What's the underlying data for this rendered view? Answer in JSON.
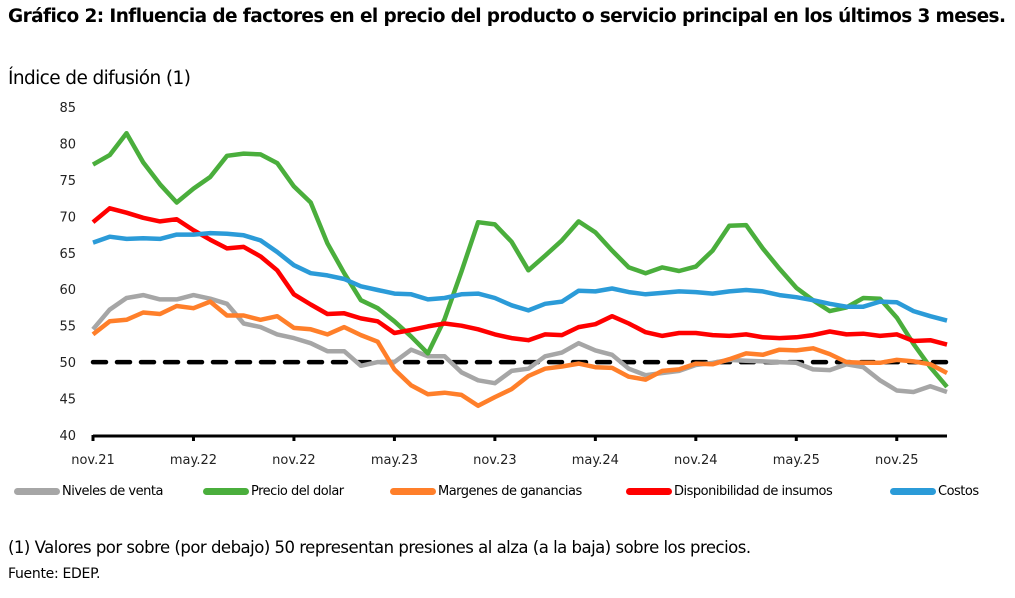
{
  "header": {
    "title": "Gráfico 2: Influencia de factores en el precio del producto o servicio principal en los últimos 3 meses.",
    "subtitle": "Índice de difusión (1)"
  },
  "footer": {
    "note": "(1) Valores por sobre (por debajo) 50 representan presiones al alza (a la baja) sobre los precios.",
    "source": "Fuente: EDEP."
  },
  "chart_data": {
    "type": "line",
    "title": "Gráfico 2: Influencia de factores en el precio del producto o servicio principal en los últimos 3 meses.",
    "ylabel": "Índice de difusión (1)",
    "xlabel": "",
    "ylim": [
      40,
      85
    ],
    "yticks": [
      40,
      45,
      50,
      55,
      60,
      65,
      70,
      75,
      80,
      85
    ],
    "x_start": "nov.21",
    "x_end": "feb.26",
    "x_frequency": "monthly",
    "xtick_labels": [
      "nov.21",
      "may.22",
      "nov.22",
      "may.23",
      "nov.23",
      "may.24",
      "nov.24",
      "may.25",
      "nov.25"
    ],
    "xtick_every": 6,
    "grid": false,
    "legend_position": "bottom",
    "reference_line": {
      "value": 50,
      "style": "dashed",
      "color": "#000000"
    },
    "series": [
      {
        "name": "Niveles de venta",
        "color": "#a6a6a6",
        "values": [
          54.5,
          57.2,
          58.8,
          59.2,
          58.6,
          58.6,
          59.2,
          58.7,
          58.0,
          55.3,
          54.8,
          53.8,
          53.3,
          52.6,
          51.5,
          51.5,
          49.5,
          50.0,
          50.0,
          51.7,
          50.8,
          50.8,
          48.6,
          47.5,
          47.1,
          48.8,
          49.1,
          50.8,
          51.3,
          52.6,
          51.6,
          51.0,
          49.1,
          48.2,
          48.5,
          48.8,
          49.6,
          49.9,
          50.3,
          50.2,
          50.1,
          50.0,
          49.9,
          49.0,
          48.9,
          49.7,
          49.3,
          47.5,
          46.1,
          45.9,
          46.7,
          45.9
        ]
      },
      {
        "name": "Precio del dolar",
        "color": "#4aae3c",
        "values": [
          77.1,
          78.4,
          81.4,
          77.4,
          74.4,
          71.9,
          73.8,
          75.4,
          78.3,
          78.6,
          78.5,
          77.3,
          74.1,
          71.9,
          66.3,
          62.2,
          58.5,
          57.4,
          55.6,
          53.5,
          51.2,
          55.9,
          62.4,
          69.2,
          68.9,
          66.5,
          62.6,
          64.6,
          66.7,
          69.3,
          67.8,
          65.3,
          63.0,
          62.2,
          63.0,
          62.5,
          63.1,
          65.3,
          68.7,
          68.8,
          65.6,
          62.8,
          60.2,
          58.5,
          57.0,
          57.5,
          58.8,
          58.7,
          56.1,
          52.5,
          49.3,
          46.6
        ]
      },
      {
        "name": "Margenes de ganancias",
        "color": "#ff7f2a",
        "values": [
          53.8,
          55.6,
          55.8,
          56.8,
          56.6,
          57.7,
          57.4,
          58.3,
          56.4,
          56.4,
          55.8,
          56.3,
          54.7,
          54.5,
          53.8,
          54.8,
          53.7,
          52.8,
          49.0,
          46.8,
          45.6,
          45.8,
          45.5,
          44.0,
          45.2,
          46.3,
          48.1,
          49.1,
          49.4,
          49.8,
          49.3,
          49.2,
          48.0,
          47.6,
          48.8,
          49.0,
          49.8,
          49.7,
          50.4,
          51.2,
          51.0,
          51.7,
          51.6,
          51.9,
          51.1,
          50.0,
          49.9,
          49.9,
          50.3,
          50.1,
          49.7,
          48.5
        ]
      },
      {
        "name": "Disponibilidad de insumos",
        "color": "#ff0000",
        "values": [
          69.2,
          71.1,
          70.5,
          69.8,
          69.3,
          69.6,
          68.1,
          66.8,
          65.6,
          65.8,
          64.5,
          62.6,
          59.3,
          57.9,
          56.6,
          56.7,
          56.0,
          55.6,
          54.0,
          54.4,
          54.9,
          55.3,
          55.0,
          54.5,
          53.8,
          53.3,
          53.0,
          53.8,
          53.7,
          54.8,
          55.2,
          56.3,
          55.3,
          54.1,
          53.6,
          54.0,
          54.0,
          53.7,
          53.6,
          53.8,
          53.4,
          53.3,
          53.4,
          53.7,
          54.2,
          53.8,
          53.9,
          53.6,
          53.8,
          52.9,
          53.0,
          52.4
        ]
      },
      {
        "name": "Costos",
        "color": "#2b9bd8",
        "values": [
          66.4,
          67.2,
          66.9,
          67.0,
          66.9,
          67.5,
          67.5,
          67.7,
          67.6,
          67.4,
          66.7,
          65.1,
          63.3,
          62.2,
          61.9,
          61.4,
          60.4,
          59.9,
          59.4,
          59.3,
          58.6,
          58.8,
          59.3,
          59.4,
          58.8,
          57.8,
          57.1,
          58.0,
          58.3,
          59.8,
          59.7,
          60.1,
          59.6,
          59.3,
          59.5,
          59.7,
          59.6,
          59.4,
          59.7,
          59.9,
          59.7,
          59.2,
          58.9,
          58.5,
          58.0,
          57.6,
          57.6,
          58.3,
          58.2,
          57.0,
          56.3,
          55.7
        ]
      }
    ]
  }
}
